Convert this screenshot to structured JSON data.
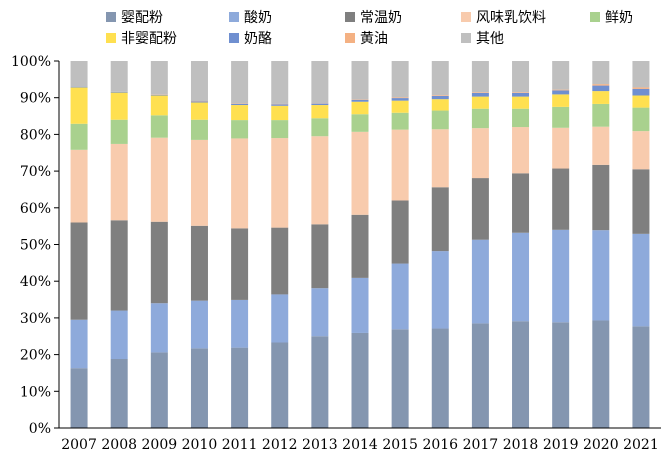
{
  "chart_data": {
    "type": "bar",
    "stacked": true,
    "percent": true,
    "categories": [
      "2007",
      "2008",
      "2009",
      "2010",
      "2011",
      "2012",
      "2013",
      "2014",
      "2015",
      "2016",
      "2017",
      "2018",
      "2019",
      "2020",
      "2021"
    ],
    "y_tick_labels": [
      "0%",
      "10%",
      "20%",
      "30%",
      "40%",
      "50%",
      "60%",
      "70%",
      "80%",
      "90%",
      "100%"
    ],
    "ylim": [
      0,
      100
    ],
    "grid": false,
    "legend_position": "top",
    "series": [
      {
        "name": "婴配粉",
        "color": "#8496b0",
        "values": [
          16.3,
          18.8,
          20.6,
          21.7,
          21.9,
          23.3,
          25.0,
          25.9,
          26.9,
          27.1,
          28.5,
          29.1,
          28.8,
          29.3,
          27.7
        ]
      },
      {
        "name": "酸奶",
        "color": "#8eaadb",
        "values": [
          13.2,
          13.2,
          13.4,
          13.0,
          13.0,
          13.1,
          13.1,
          15.0,
          17.9,
          21.1,
          22.8,
          24.1,
          25.2,
          24.6,
          25.2
        ]
      },
      {
        "name": "常温奶",
        "color": "#7f7f7f",
        "values": [
          26.5,
          24.6,
          22.2,
          20.4,
          19.5,
          18.2,
          17.4,
          17.2,
          17.2,
          17.4,
          16.8,
          16.2,
          16.7,
          17.8,
          17.6
        ]
      },
      {
        "name": "风味乳饮料",
        "color": "#f8cbad",
        "values": [
          19.8,
          20.8,
          22.9,
          23.4,
          24.5,
          24.4,
          24.0,
          22.6,
          19.3,
          15.8,
          13.6,
          12.6,
          11.1,
          10.4,
          10.4
        ]
      },
      {
        "name": "鲜奶",
        "color": "#a9d18e",
        "values": [
          7.1,
          6.6,
          6.1,
          5.5,
          5.0,
          4.9,
          4.9,
          4.8,
          4.6,
          5.1,
          5.3,
          5.0,
          5.7,
          6.2,
          6.4
        ]
      },
      {
        "name": "非婴配粉",
        "color": "#ffe050",
        "values": [
          9.9,
          7.4,
          5.4,
          4.7,
          4.1,
          3.9,
          3.6,
          3.4,
          3.3,
          3.1,
          3.3,
          3.3,
          3.4,
          3.5,
          3.3
        ]
      },
      {
        "name": "奶酪",
        "color": "#6f8fd0",
        "values": [
          0.2,
          0.2,
          0.2,
          0.3,
          0.3,
          0.4,
          0.4,
          0.5,
          0.7,
          0.9,
          1.0,
          1.0,
          1.1,
          1.5,
          1.8
        ]
      },
      {
        "name": "黄油",
        "color": "#f4b183",
        "values": [
          0.0,
          0.0,
          0.1,
          0.1,
          0.1,
          0.1,
          0.1,
          0.1,
          0.2,
          0.2,
          0.2,
          0.2,
          0.2,
          0.4,
          0.4
        ]
      },
      {
        "name": "其他",
        "color": "#bfbfbf",
        "values": [
          7.0,
          8.4,
          9.1,
          10.9,
          11.6,
          11.7,
          11.5,
          10.5,
          9.9,
          9.3,
          8.5,
          8.5,
          7.8,
          6.3,
          7.2
        ]
      }
    ]
  }
}
